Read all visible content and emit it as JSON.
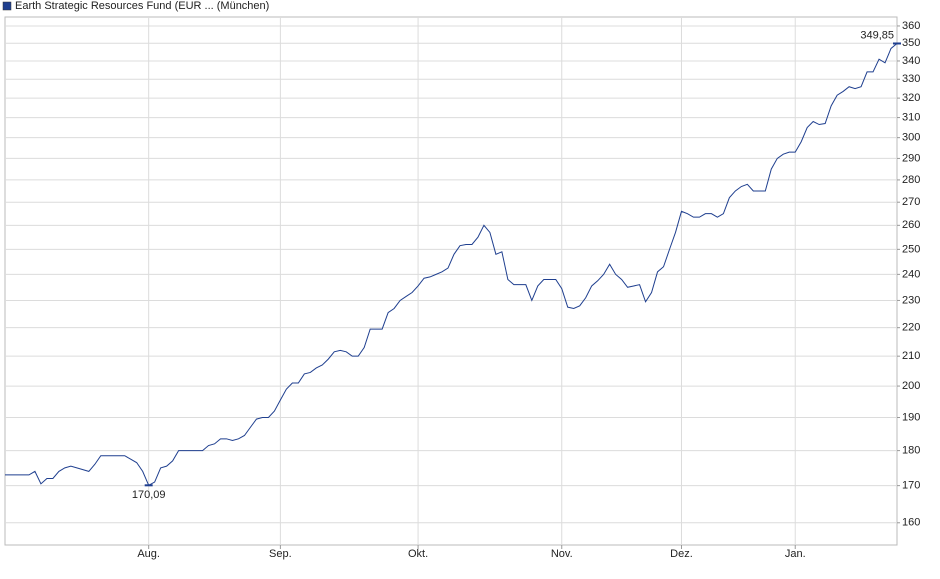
{
  "chart_data": {
    "type": "line",
    "categories": [
      null,
      null,
      null,
      null,
      null,
      null,
      null,
      null,
      null,
      null,
      null,
      null,
      null,
      null,
      null,
      null,
      null,
      null,
      null,
      null,
      null,
      null,
      null,
      null,
      "Aug.",
      null,
      null,
      null,
      null,
      null,
      null,
      null,
      null,
      null,
      null,
      null,
      null,
      null,
      null,
      null,
      null,
      null,
      null,
      null,
      null,
      null,
      "Sep.",
      null,
      null,
      null,
      null,
      null,
      null,
      null,
      null,
      null,
      null,
      null,
      null,
      null,
      null,
      null,
      null,
      null,
      null,
      null,
      null,
      null,
      null,
      "Okt.",
      null,
      null,
      null,
      null,
      null,
      null,
      null,
      null,
      null,
      null,
      null,
      null,
      null,
      null,
      null,
      null,
      null,
      null,
      null,
      null,
      null,
      null,
      null,
      "Nov.",
      null,
      null,
      null,
      null,
      null,
      null,
      null,
      null,
      null,
      null,
      null,
      null,
      null,
      null,
      null,
      null,
      null,
      null,
      null,
      "Dez.",
      null,
      null,
      null,
      null,
      null,
      null,
      null,
      null,
      null,
      null,
      null,
      null,
      null,
      null,
      null,
      null,
      null,
      null,
      "Jan.",
      null,
      null,
      null,
      null,
      null,
      null,
      null,
      null,
      null,
      null,
      null,
      null,
      null,
      null,
      null,
      null,
      null
    ],
    "series": [
      {
        "name": "Earth Strategic Resources Fund (EUR ... (München)",
        "color": "#1f3f8f",
        "values": [
          173,
          173,
          173,
          173,
          173,
          174,
          170.5,
          172,
          172,
          174,
          175,
          175.5,
          175,
          174.5,
          174,
          176,
          178.5,
          178.5,
          178.5,
          178.5,
          178.5,
          177.5,
          176.5,
          174,
          170.09,
          171,
          175,
          175.5,
          177,
          180,
          180,
          180,
          180,
          180,
          181.5,
          182,
          183.5,
          183.5,
          183,
          183.5,
          184.5,
          187,
          189.5,
          190,
          190,
          192,
          195.5,
          199,
          201,
          201,
          204,
          204.5,
          206,
          207,
          209,
          211.5,
          212,
          211.5,
          210,
          210,
          213,
          219.5,
          219.5,
          219.5,
          225.5,
          227,
          230,
          231.5,
          233,
          235.5,
          238.5,
          239,
          240,
          241,
          242.5,
          248,
          251.5,
          252,
          252,
          255,
          260,
          257,
          248,
          249,
          238,
          236,
          236,
          236,
          230,
          235.5,
          238,
          238,
          238,
          234.5,
          227.5,
          227,
          228,
          231,
          235.5,
          237.5,
          240,
          244,
          240,
          238,
          235,
          235.5,
          236,
          229.5,
          233,
          241,
          243,
          250,
          257,
          266,
          265,
          263.5,
          263.5,
          265,
          265,
          263.5,
          265,
          272,
          275,
          277,
          278,
          275,
          275,
          275,
          285,
          290,
          292,
          293,
          293,
          298,
          305,
          308,
          306.5,
          307,
          316,
          321.5,
          323.5,
          326,
          325,
          326,
          334,
          334,
          341,
          339,
          347,
          349.85
        ],
        "value_labels": [
          null,
          null,
          null,
          null,
          null,
          null,
          null,
          null,
          null,
          null,
          null,
          null,
          null,
          null,
          null,
          null,
          null,
          null,
          null,
          null,
          null,
          null,
          null,
          null,
          "170,09",
          null,
          null,
          null,
          null,
          null,
          null,
          null,
          null,
          null,
          null,
          null,
          null,
          null,
          null,
          null,
          null,
          null,
          null,
          null,
          null,
          null,
          null,
          null,
          null,
          null,
          null,
          null,
          null,
          null,
          null,
          null,
          null,
          null,
          null,
          null,
          null,
          null,
          null,
          null,
          null,
          null,
          null,
          null,
          null,
          null,
          null,
          null,
          null,
          null,
          null,
          null,
          null,
          null,
          null,
          null,
          null,
          null,
          null,
          null,
          null,
          null,
          null,
          null,
          null,
          null,
          null,
          null,
          null,
          null,
          null,
          null,
          null,
          null,
          null,
          null,
          null,
          null,
          null,
          null,
          null,
          null,
          null,
          null,
          null,
          null,
          null,
          null,
          null,
          null,
          null,
          null,
          null,
          null,
          null,
          null,
          null,
          null,
          null,
          null,
          null,
          null,
          null,
          null,
          null,
          null,
          null,
          null,
          null,
          null,
          null,
          null,
          null,
          null,
          null,
          null,
          null,
          null,
          null,
          null,
          null,
          null,
          null,
          null,
          null,
          "349,85"
        ]
      }
    ],
    "ylim": [
      154.3,
      365.3
    ],
    "ylog": true,
    "yticks": [
      160,
      170,
      180,
      190,
      200,
      210,
      220,
      230,
      240,
      250,
      260,
      270,
      280,
      290,
      300,
      310,
      320,
      330,
      340,
      350,
      360
    ],
    "grid": true,
    "legend": "top-left"
  }
}
